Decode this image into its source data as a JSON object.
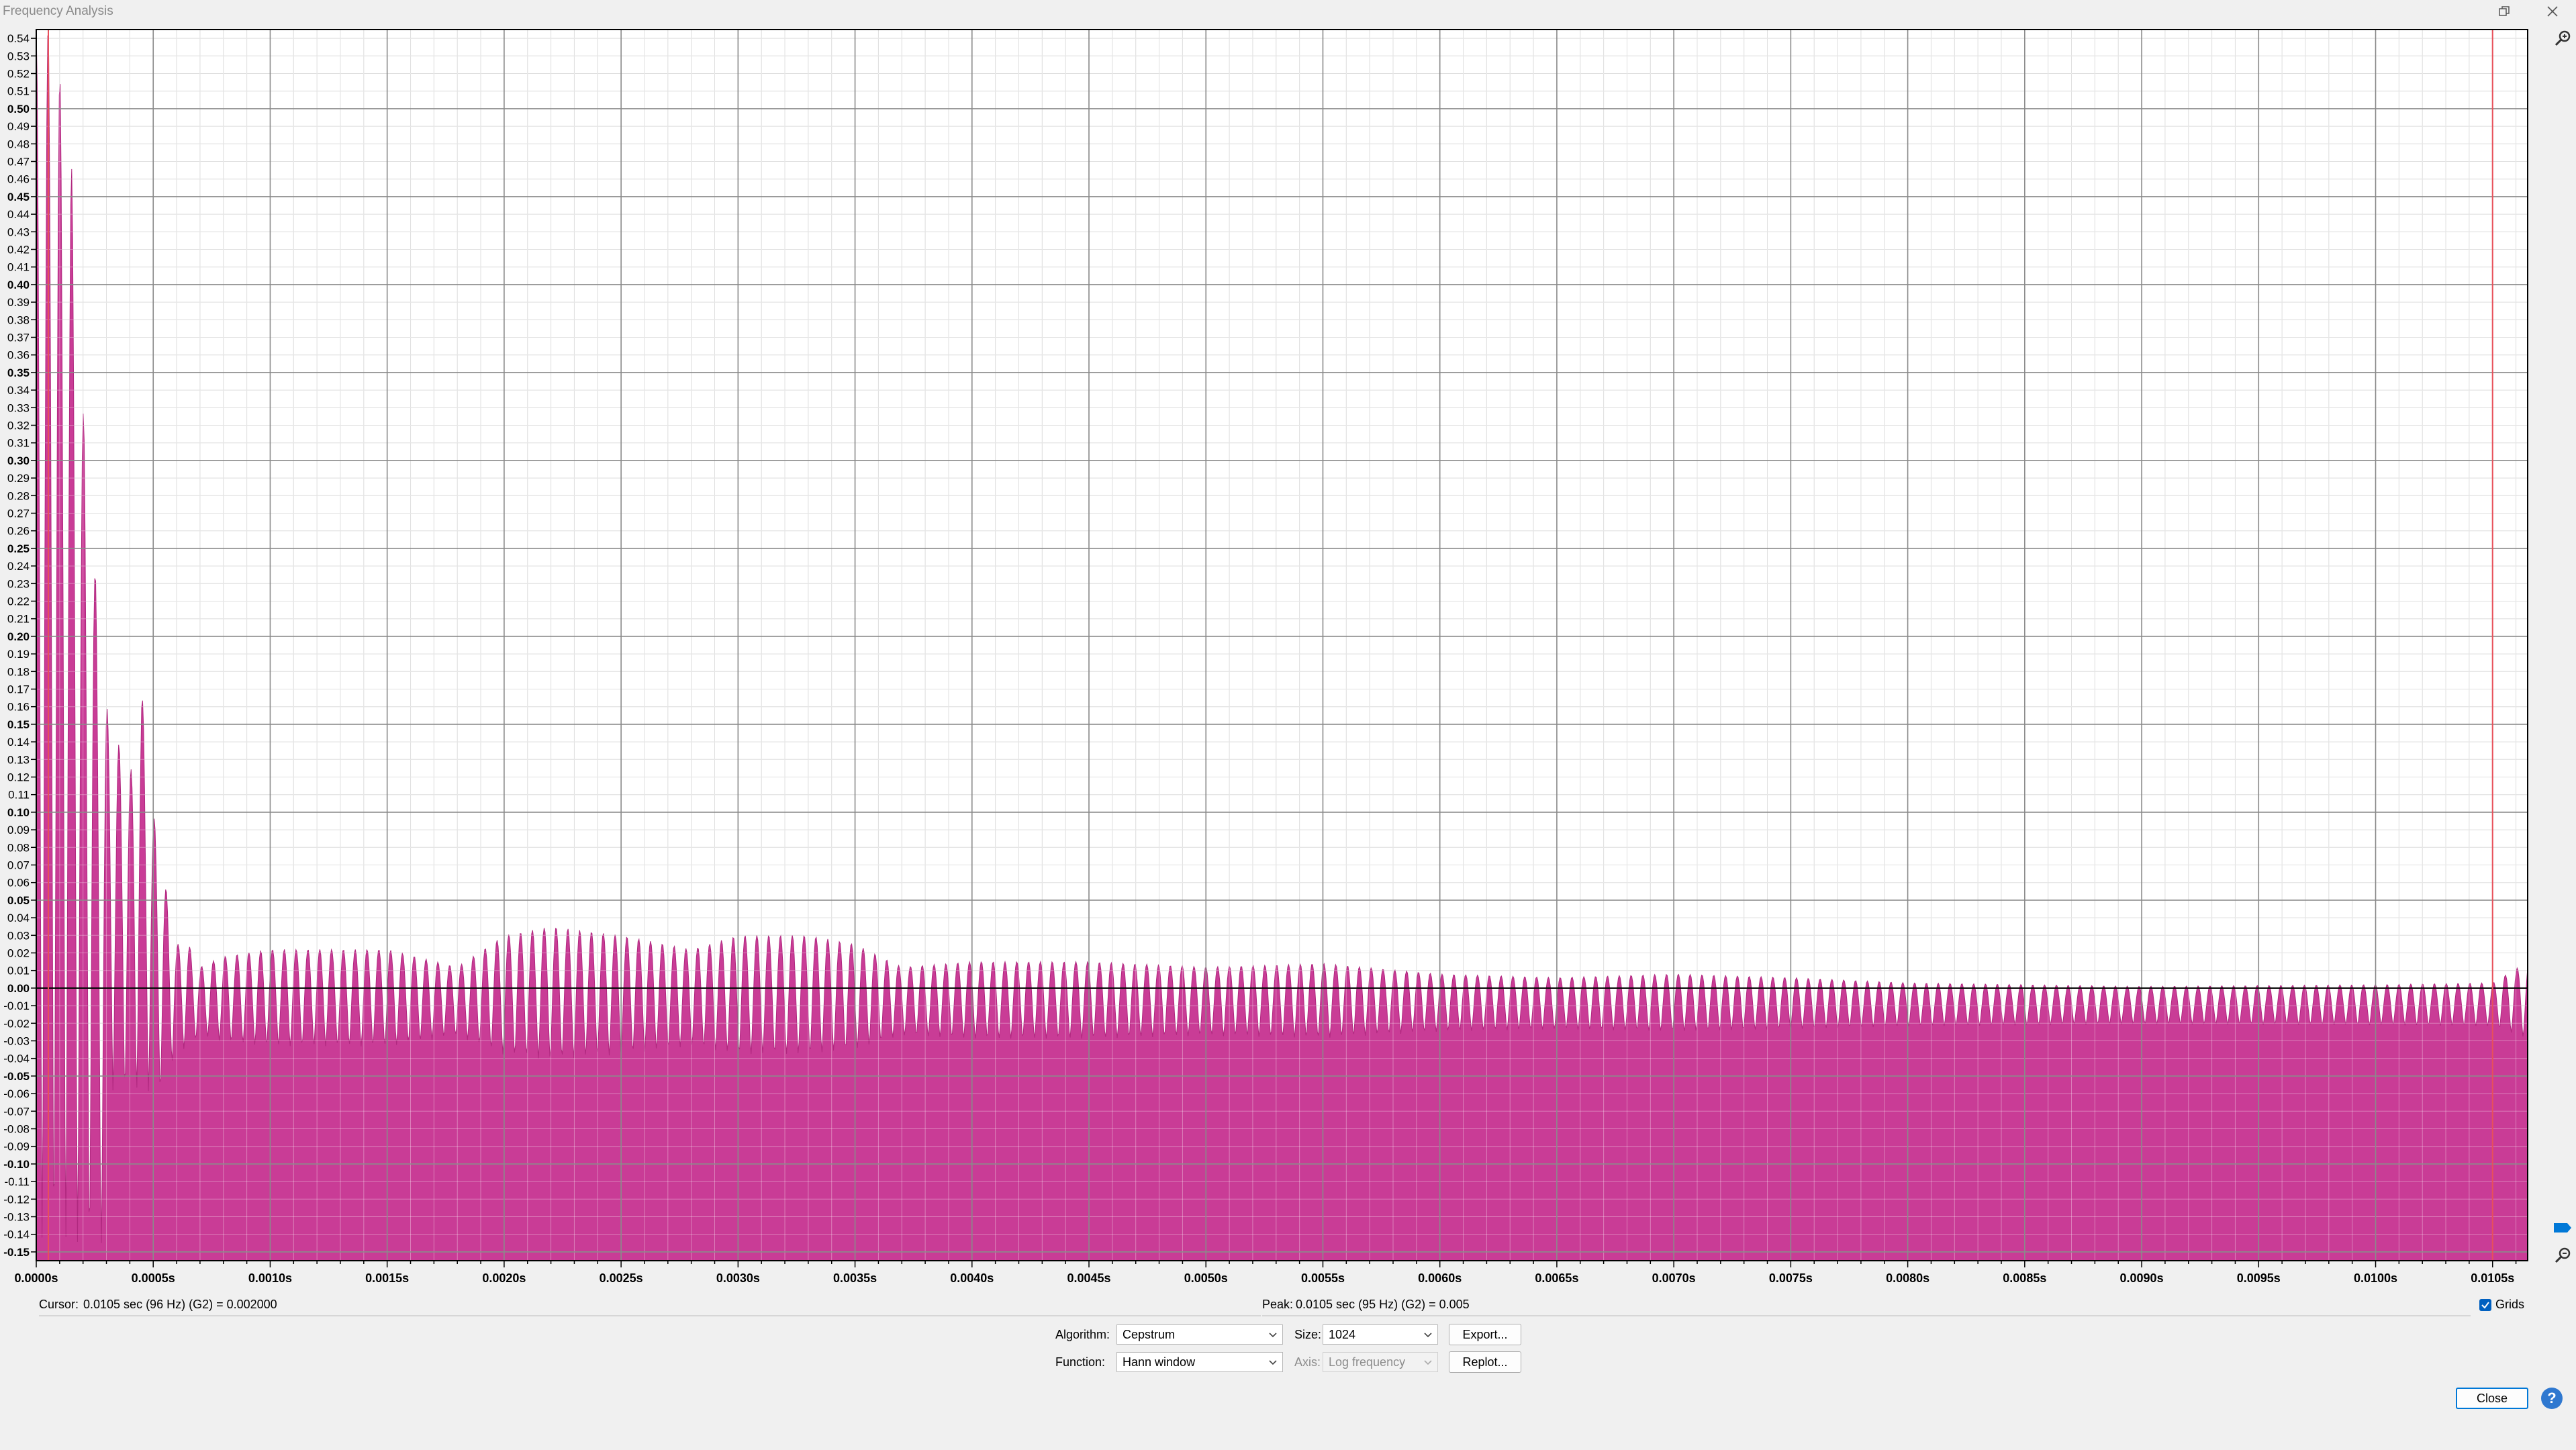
{
  "window": {
    "title": "Frequency Analysis"
  },
  "colors": {
    "plot": "#c93c96",
    "plot_edge": "#b0287f",
    "marker": "#e8505a",
    "accent": "#0060c0"
  },
  "chart_data": {
    "type": "area",
    "x_unit": "s",
    "xlim": [
      0,
      0.01065
    ],
    "ylim": [
      -0.155,
      0.545
    ],
    "grid": true,
    "x_ticks": [
      "0.0000s",
      "0.0005s",
      "0.0010s",
      "0.0015s",
      "0.0020s",
      "0.0025s",
      "0.0030s",
      "0.0035s",
      "0.0040s",
      "0.0045s",
      "0.0050s",
      "0.0055s",
      "0.0060s",
      "0.0065s",
      "0.0070s",
      "0.0075s",
      "0.0080s",
      "0.0085s",
      "0.0090s",
      "0.0095s",
      "0.0100s",
      "0.0105s"
    ],
    "y_ticks": [
      "0.54",
      "0.53",
      "0.52",
      "0.51",
      "0.50",
      "0.49",
      "0.48",
      "0.47",
      "0.46",
      "0.45",
      "0.44",
      "0.43",
      "0.42",
      "0.41",
      "0.40",
      "0.39",
      "0.38",
      "0.37",
      "0.36",
      "0.35",
      "0.34",
      "0.33",
      "0.32",
      "0.31",
      "0.30",
      "0.29",
      "0.28",
      "0.27",
      "0.26",
      "0.25",
      "0.24",
      "0.23",
      "0.22",
      "0.21",
      "0.20",
      "0.19",
      "0.18",
      "0.17",
      "0.16",
      "0.15",
      "0.14",
      "0.13",
      "0.12",
      "0.11",
      "0.10",
      "0.09",
      "0.08",
      "0.07",
      "0.06",
      "0.05",
      "0.04",
      "0.03",
      "0.02",
      "0.01",
      "0.00",
      "-0.01",
      "-0.02",
      "-0.03",
      "-0.04",
      "-0.05",
      "-0.06",
      "-0.07",
      "-0.08",
      "-0.09",
      "-0.10",
      "-0.11",
      "-0.12",
      "-0.13",
      "-0.14",
      "-0.15"
    ],
    "peak_markers_x": [
      0.0105
    ],
    "envelope": [
      [
        0.0,
        0.545
      ],
      [
        5e-05,
        0.545
      ],
      [
        0.0001,
        0.52
      ],
      [
        0.00015,
        0.47
      ],
      [
        0.0002,
        0.33
      ],
      [
        0.00025,
        0.24
      ],
      [
        0.0003,
        0.16
      ],
      [
        0.00035,
        0.14
      ],
      [
        0.0004,
        0.12
      ],
      [
        0.00045,
        0.17
      ],
      [
        0.0005,
        0.1
      ],
      [
        0.00055,
        0.06
      ],
      [
        0.0006,
        0.025
      ],
      [
        0.00065,
        0.025
      ],
      [
        0.0007,
        0.012
      ],
      [
        0.0008,
        0.018
      ],
      [
        0.001,
        0.022
      ],
      [
        0.0015,
        0.022
      ],
      [
        0.0018,
        0.012
      ],
      [
        0.002,
        0.03
      ],
      [
        0.0022,
        0.035
      ],
      [
        0.0025,
        0.03
      ],
      [
        0.0028,
        0.022
      ],
      [
        0.003,
        0.03
      ],
      [
        0.0033,
        0.03
      ],
      [
        0.0035,
        0.025
      ],
      [
        0.0037,
        0.012
      ],
      [
        0.004,
        0.015
      ],
      [
        0.0045,
        0.015
      ],
      [
        0.005,
        0.012
      ],
      [
        0.0055,
        0.014
      ],
      [
        0.006,
        0.008
      ],
      [
        0.0065,
        0.006
      ],
      [
        0.007,
        0.008
      ],
      [
        0.0075,
        0.006
      ],
      [
        0.008,
        0.003
      ],
      [
        0.009,
        0.001
      ],
      [
        0.01,
        0.002
      ],
      [
        0.0105,
        0.003
      ],
      [
        0.01065,
        0.015
      ]
    ]
  },
  "status": {
    "cursor_label": "Cursor:",
    "cursor_value": "0.0105 sec (96 Hz) (G2) = 0.002000",
    "peak_label": "Peak:",
    "peak_value": "0.0105 sec (95 Hz) (G2) = 0.005",
    "grids_label": "Grids"
  },
  "controls": {
    "algorithm_label": "Algorithm:",
    "algorithm_value": "Cepstrum",
    "size_label": "Size:",
    "size_value": "1024",
    "function_label": "Function:",
    "function_value": "Hann window",
    "axis_label": "Axis:",
    "axis_value": "Log frequency",
    "export_label": "Export...",
    "replot_label": "Replot...",
    "close_label": "Close",
    "help_label": "?"
  }
}
